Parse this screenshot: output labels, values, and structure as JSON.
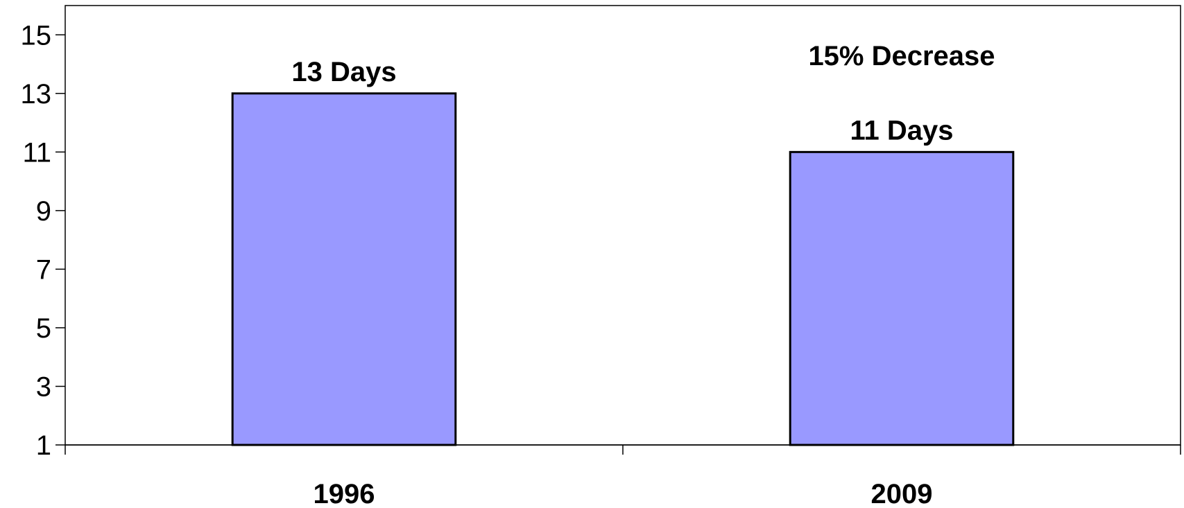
{
  "chart_data": {
    "type": "bar",
    "title": "",
    "xlabel": "",
    "ylabel": "",
    "categories": [
      "1996",
      "2009"
    ],
    "values": [
      13,
      11
    ],
    "data_labels": [
      "13 Days",
      "11 Days"
    ],
    "annotations": [
      {
        "text": "15% Decrease",
        "category": "2009"
      }
    ],
    "ylim": [
      1,
      16
    ],
    "yticks": [
      1,
      3,
      5,
      7,
      9,
      11,
      13,
      15
    ],
    "grid": false,
    "legend": "none",
    "bar_color": "#9999ff",
    "bar_border_color": "#000000"
  }
}
